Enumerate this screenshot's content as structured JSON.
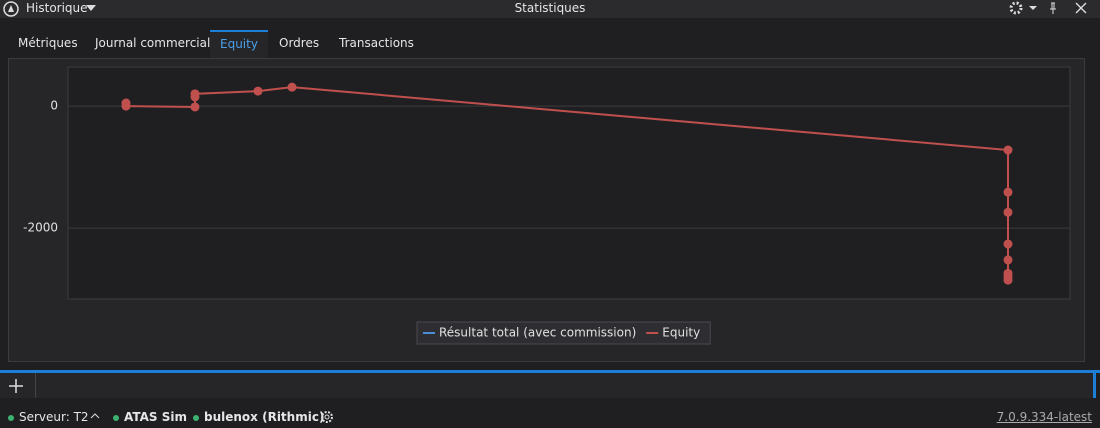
{
  "window": {
    "menu": "Historique",
    "title": "Statistiques"
  },
  "tabs": [
    "Métriques",
    "Journal commercial",
    "Equity",
    "Ordres",
    "Transactions"
  ],
  "active_tab": 2,
  "chart_data": {
    "type": "line",
    "x": [
      58,
      58,
      127,
      127,
      127,
      190,
      224,
      940,
      940,
      940,
      940,
      940,
      940,
      940,
      940
    ],
    "xlim": [
      0,
      1002
    ],
    "ylim": [
      -3160,
      640
    ],
    "yticks": [
      -2000,
      0
    ],
    "grid": true,
    "series": [
      {
        "name": "Résultat total (avec commission)",
        "color": "#4a90d9",
        "values": [
          null,
          null,
          null,
          null,
          null,
          null,
          null,
          null,
          null,
          null,
          null,
          null,
          null,
          null,
          null
        ]
      },
      {
        "name": "Equity",
        "color": "#c0504d",
        "values": [
          50,
          0,
          -15,
          150,
          200,
          245,
          310,
          -720,
          -1410,
          -1740,
          -2260,
          -2520,
          -2740,
          -2800,
          -2850
        ]
      }
    ]
  },
  "status": {
    "server": "Serveur: T2",
    "account": "ATAS Sim",
    "connection": "bulenox (Rithmic)",
    "version": "7.0.9.334-latest"
  }
}
